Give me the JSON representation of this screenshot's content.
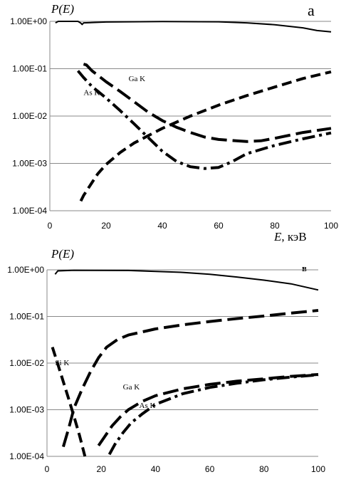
{
  "chart_data": [
    {
      "type": "line",
      "panel_label": "а",
      "ylabel": "P(E)",
      "xlabel_var": "E",
      "xlabel_unit": ", кэВ",
      "xlim": [
        0,
        100
      ],
      "ylim": [
        0.0001,
        1
      ],
      "yscale": "log",
      "xticks": [
        "0",
        "20",
        "40",
        "60",
        "80",
        "100"
      ],
      "yticks": [
        "1.00E+00",
        "1.00E-01",
        "1.00E-02",
        "1.00E-03",
        "1.00E-04"
      ],
      "grid": "horizontal",
      "annotations": [
        {
          "text": "Ga K",
          "x": 28,
          "y": 0.055
        },
        {
          "text": "As K",
          "x": 12,
          "y": 0.028
        }
      ],
      "series": [
        {
          "style": "solid",
          "points": [
            [
              2,
              0.93
            ],
            [
              3,
              1.0
            ],
            [
              10,
              1.0
            ],
            [
              11,
              0.92
            ],
            [
              11.5,
              0.86
            ],
            [
              12,
              0.93
            ],
            [
              20,
              0.97
            ],
            [
              40,
              0.99
            ],
            [
              60,
              0.98
            ],
            [
              70,
              0.93
            ],
            [
              80,
              0.85
            ],
            [
              90,
              0.73
            ],
            [
              95,
              0.64
            ],
            [
              100,
              0.6
            ]
          ]
        },
        {
          "style": "dash",
          "points": [
            [
              11,
              0.00016
            ],
            [
              12,
              0.00021
            ],
            [
              14,
              0.00032
            ],
            [
              17,
              0.0006
            ],
            [
              20,
              0.00095
            ],
            [
              25,
              0.0017
            ],
            [
              30,
              0.0027
            ],
            [
              40,
              0.0055
            ],
            [
              50,
              0.01
            ],
            [
              60,
              0.017
            ],
            [
              70,
              0.027
            ],
            [
              80,
              0.041
            ],
            [
              90,
              0.062
            ],
            [
              100,
              0.086
            ]
          ]
        },
        {
          "style": "longdash",
          "points": [
            [
              12,
              0.125
            ],
            [
              13,
              0.12
            ],
            [
              15,
              0.09
            ],
            [
              20,
              0.053
            ],
            [
              25,
              0.033
            ],
            [
              30,
              0.02
            ],
            [
              35,
              0.012
            ],
            [
              40,
              0.008
            ],
            [
              45,
              0.0058
            ],
            [
              50,
              0.0045
            ],
            [
              55,
              0.0036
            ],
            [
              60,
              0.0032
            ],
            [
              70,
              0.0029
            ],
            [
              75,
              0.003
            ],
            [
              80,
              0.0034
            ],
            [
              90,
              0.0045
            ],
            [
              100,
              0.0055
            ]
          ]
        },
        {
          "style": "dashdot",
          "points": [
            [
              10,
              0.09
            ],
            [
              12,
              0.065
            ],
            [
              15,
              0.042
            ],
            [
              20,
              0.024
            ],
            [
              25,
              0.013
            ],
            [
              30,
              0.0068
            ],
            [
              35,
              0.0035
            ],
            [
              40,
              0.0018
            ],
            [
              45,
              0.0011
            ],
            [
              50,
              0.00085
            ],
            [
              55,
              0.00078
            ],
            [
              60,
              0.00082
            ],
            [
              65,
              0.0011
            ],
            [
              70,
              0.0016
            ],
            [
              80,
              0.0024
            ],
            [
              90,
              0.0033
            ],
            [
              100,
              0.0044
            ]
          ]
        }
      ]
    },
    {
      "type": "line",
      "panel_label": "в",
      "ylabel": "P(E)",
      "xlim": [
        0,
        100
      ],
      "ylim": [
        0.0001,
        1
      ],
      "yscale": "log",
      "xticks": [
        "0",
        "20",
        "40",
        "60",
        "80",
        "100"
      ],
      "yticks": [
        "1.00E+00",
        "1.00E-01",
        "1.00E-02",
        "1.00E-03",
        "1.00E-04"
      ],
      "grid": "horizontal",
      "annotations": [
        {
          "text": "Si K",
          "x": 3,
          "y": 0.009
        },
        {
          "text": "Ga K",
          "x": 28,
          "y": 0.0027
        },
        {
          "text": "As K",
          "x": 34,
          "y": 0.0011
        }
      ],
      "series": [
        {
          "style": "solid",
          "points": [
            [
              3,
              0.8
            ],
            [
              4,
              0.95
            ],
            [
              10,
              0.98
            ],
            [
              30,
              0.97
            ],
            [
              50,
              0.88
            ],
            [
              60,
              0.8
            ],
            [
              70,
              0.7
            ],
            [
              80,
              0.6
            ],
            [
              90,
              0.5
            ],
            [
              100,
              0.37
            ]
          ]
        },
        {
          "style": "longdash",
          "points": [
            [
              6,
              0.00016
            ],
            [
              8,
              0.0004
            ],
            [
              10,
              0.0011
            ],
            [
              13,
              0.0028
            ],
            [
              16,
              0.0065
            ],
            [
              19,
              0.013
            ],
            [
              22,
              0.022
            ],
            [
              26,
              0.032
            ],
            [
              30,
              0.04
            ],
            [
              40,
              0.054
            ],
            [
              50,
              0.066
            ],
            [
              60,
              0.078
            ],
            [
              70,
              0.09
            ],
            [
              80,
              0.102
            ],
            [
              90,
              0.118
            ],
            [
              100,
              0.135
            ]
          ]
        },
        {
          "style": "dash",
          "points": [
            [
              2,
              0.022
            ],
            [
              4,
              0.0095
            ],
            [
              6,
              0.004
            ],
            [
              8,
              0.0017
            ],
            [
              10,
              0.0007
            ],
            [
              12,
              0.00028
            ],
            [
              14,
              0.0001
            ]
          ]
        },
        {
          "style": "longdash",
          "points": [
            [
              19,
              0.00017
            ],
            [
              21,
              0.00025
            ],
            [
              24,
              0.00045
            ],
            [
              27,
              0.0007
            ],
            [
              30,
              0.001
            ],
            [
              35,
              0.0015
            ],
            [
              40,
              0.002
            ],
            [
              50,
              0.0028
            ],
            [
              60,
              0.0035
            ],
            [
              70,
              0.0041
            ],
            [
              80,
              0.0046
            ],
            [
              90,
              0.0052
            ],
            [
              100,
              0.0057
            ]
          ]
        },
        {
          "style": "dashdot",
          "points": [
            [
              23,
              0.00011
            ],
            [
              25,
              0.00018
            ],
            [
              28,
              0.00032
            ],
            [
              31,
              0.00052
            ],
            [
              35,
              0.0008
            ],
            [
              40,
              0.0013
            ],
            [
              50,
              0.0022
            ],
            [
              60,
              0.003
            ],
            [
              70,
              0.0037
            ],
            [
              80,
              0.0044
            ],
            [
              90,
              0.005
            ],
            [
              100,
              0.0056
            ]
          ]
        }
      ]
    }
  ]
}
